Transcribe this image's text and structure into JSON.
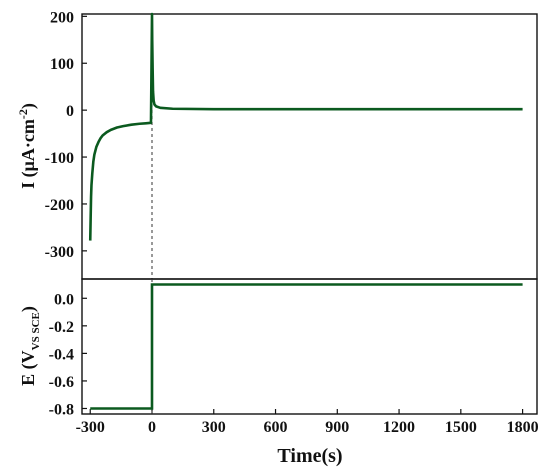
{
  "chart_data": [
    {
      "type": "line",
      "panel": "top",
      "ylabel": "I (μA·cm⁻²)",
      "ylabel_main": "I (μA·cm",
      "ylabel_sup": "-2",
      "ylabel_close": ")",
      "ylim": [
        -360,
        205
      ],
      "yticks": [
        200,
        100,
        0,
        -100,
        -200,
        -300
      ],
      "line_color": "#0b5a1f",
      "series": [
        {
          "x": [
            -300,
            -298,
            -296,
            -294,
            -290,
            -285,
            -280,
            -270,
            -260,
            -250,
            -240,
            -220,
            -200,
            -170,
            -140,
            -100,
            -60,
            -30,
            -5,
            0,
            1,
            3,
            5,
            8,
            12,
            20,
            40,
            100,
            300,
            600,
            900,
            1200,
            1500,
            1800
          ],
          "y": [
            -278,
            -230,
            -185,
            -160,
            -135,
            -110,
            -95,
            -78,
            -68,
            -60,
            -54,
            -47,
            -42,
            -37,
            -34,
            -31,
            -29,
            -28,
            -27,
            205,
            150,
            90,
            40,
            20,
            12,
            8,
            5,
            3,
            2,
            2,
            2,
            2,
            2,
            2
          ]
        }
      ]
    },
    {
      "type": "line",
      "panel": "bottom",
      "ylabel_main": "E (V",
      "ylabel_sub": "VS SCE",
      "ylabel_close": ")",
      "ylim": [
        -0.84,
        0.14
      ],
      "yticks": [
        "0.0",
        "-0.2",
        "-0.4",
        "-0.6",
        "-0.8"
      ],
      "ytick_values": [
        0.0,
        -0.2,
        -0.4,
        -0.6,
        -0.8
      ],
      "xlabel": "Time(s)",
      "xlim": [
        -340,
        1870
      ],
      "xticks": [
        "-300",
        "0",
        "300",
        "600",
        "900",
        "1200",
        "1500",
        "1800"
      ],
      "xtick_values": [
        -300,
        0,
        300,
        600,
        900,
        1200,
        1500,
        1800
      ],
      "line_color": "#0b5a1f",
      "series": [
        {
          "x": [
            -300,
            0,
            0,
            1800
          ],
          "y": [
            -0.8,
            -0.8,
            0.1,
            0.1
          ]
        }
      ]
    }
  ],
  "marker": {
    "x": 0,
    "style": "dashed"
  }
}
